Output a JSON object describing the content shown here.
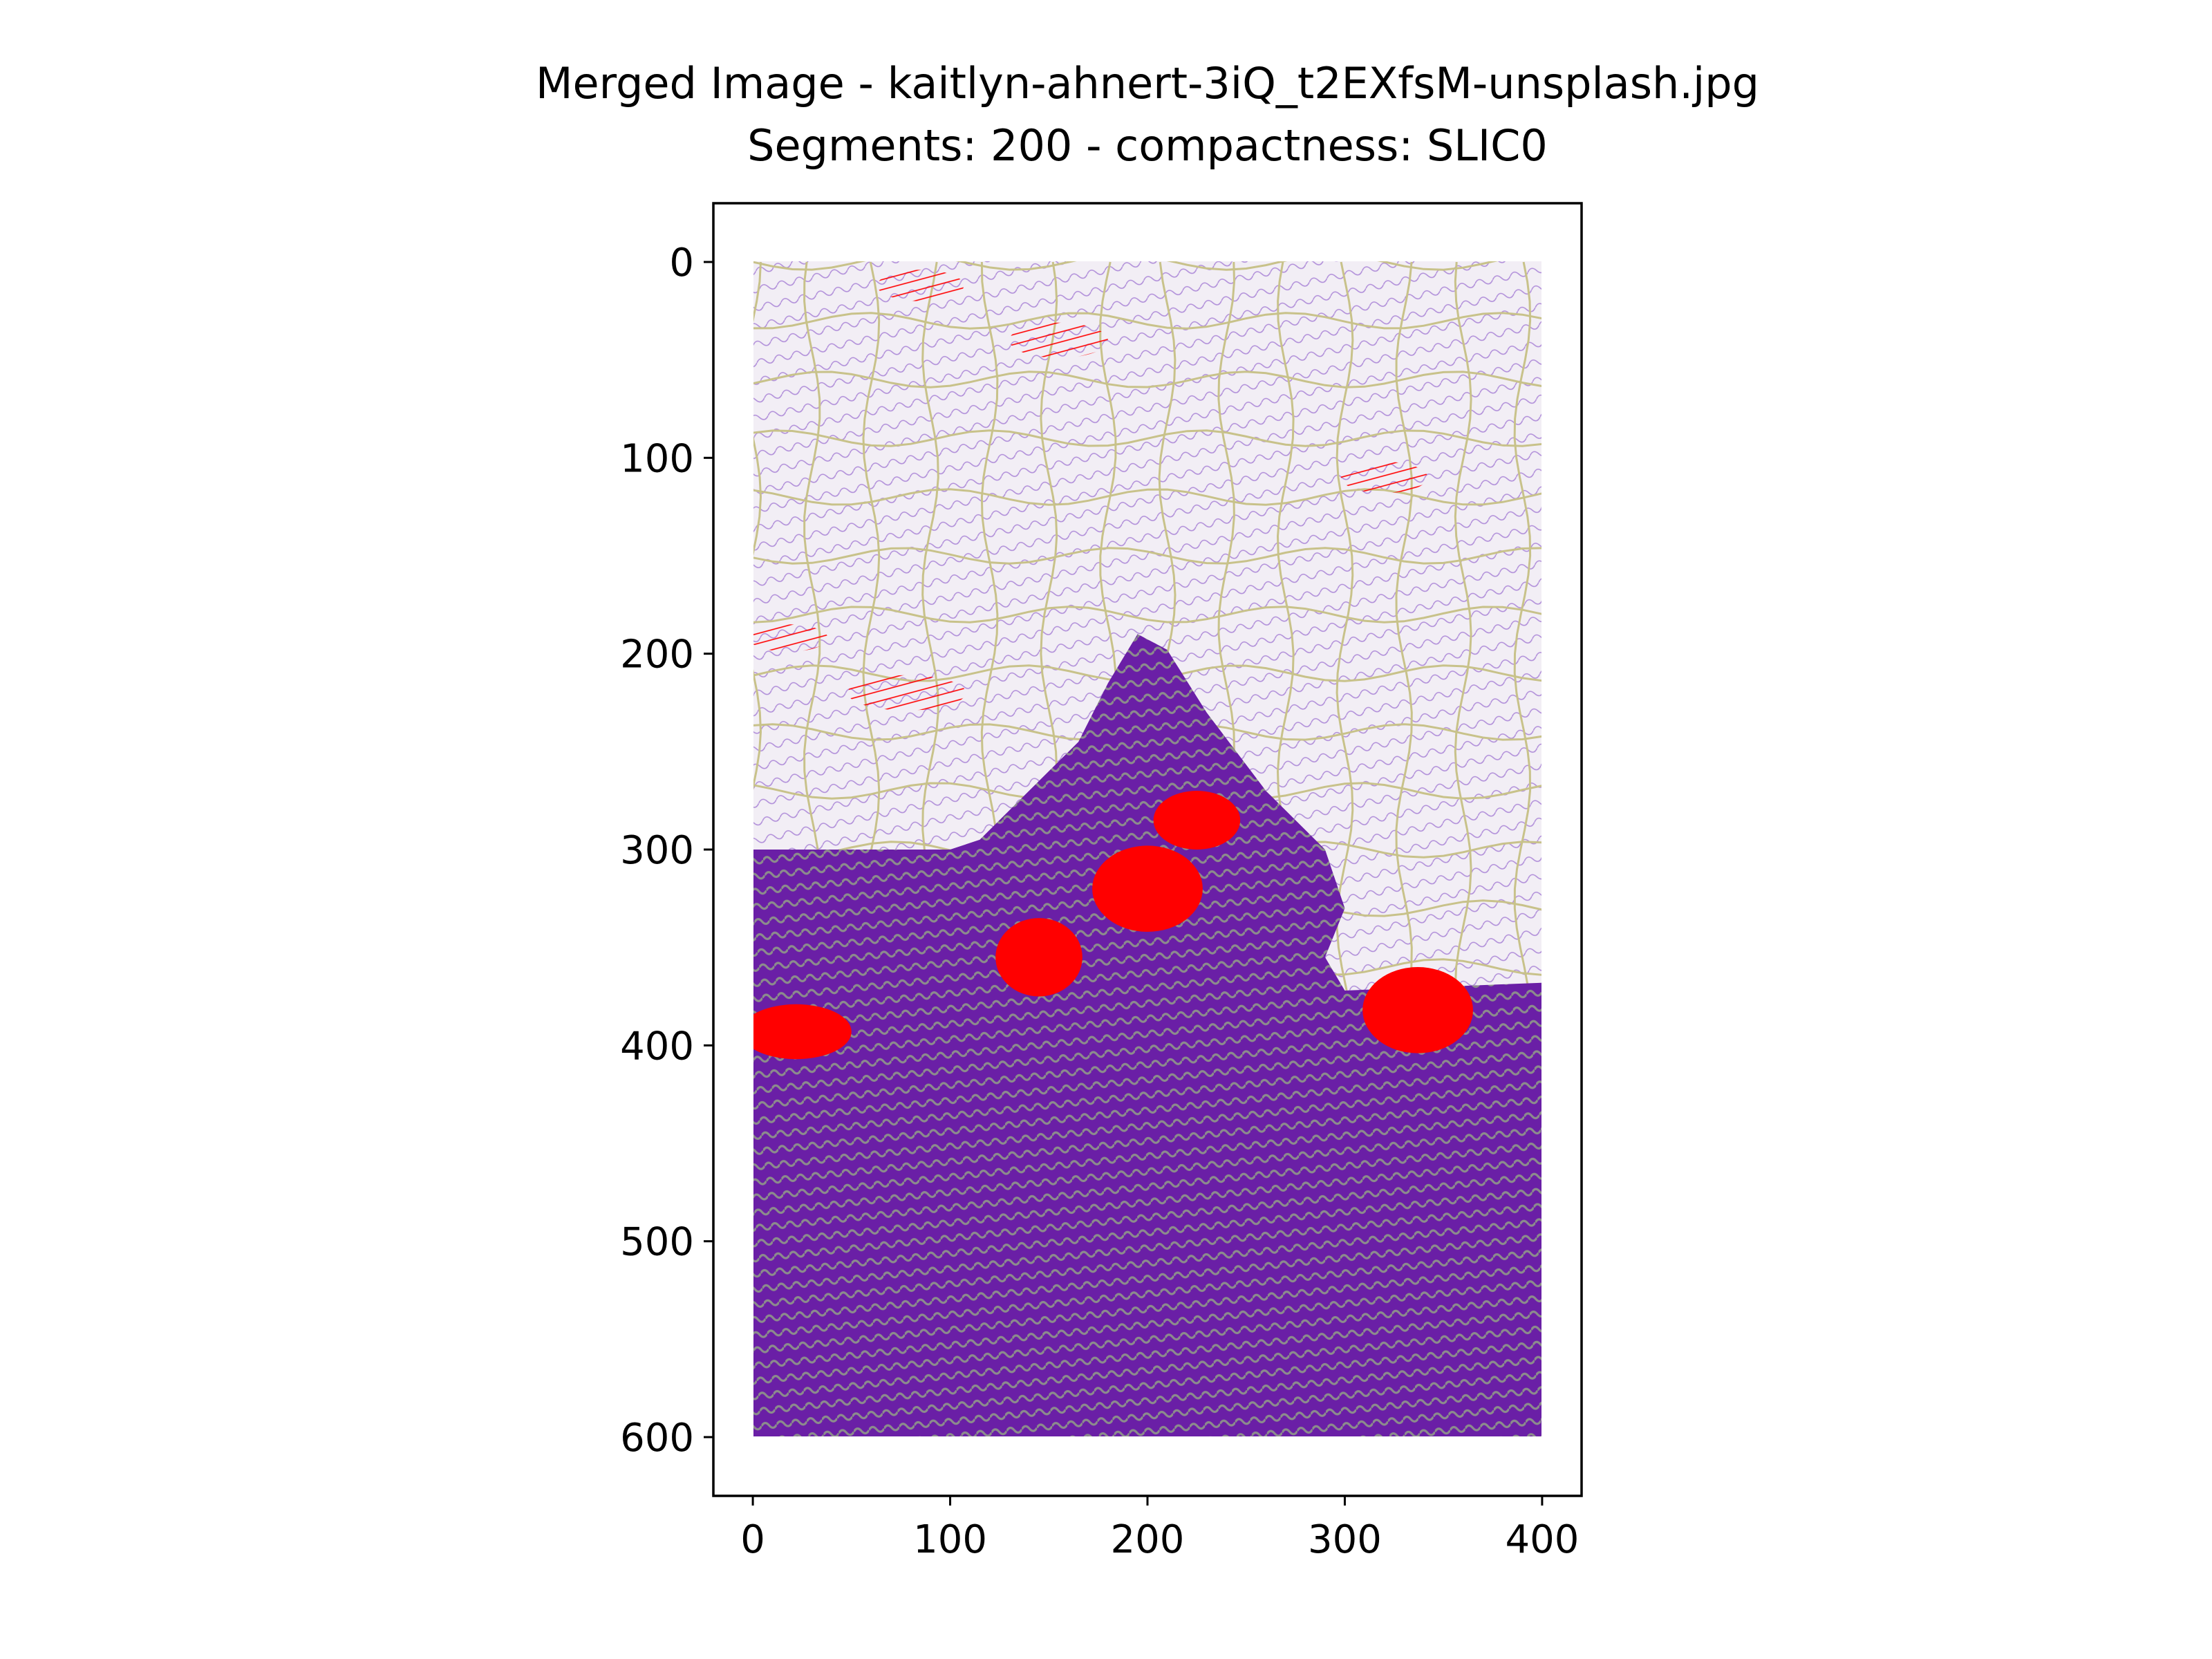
{
  "chart_data": {
    "type": "image",
    "title": "Merged Image - kaitlyn-ahnert-3iQ_t2EXfsM-unsplash.jpg",
    "subtitle": "Segments: 200 - compactness: SLIC0",
    "xlim": [
      -20,
      420
    ],
    "ylim": [
      630,
      -30
    ],
    "image_extent": {
      "x": [
        0,
        400
      ],
      "y": [
        0,
        600
      ]
    },
    "x_ticks": [
      0,
      100,
      200,
      300,
      400
    ],
    "y_ticks": [
      0,
      100,
      200,
      300,
      400,
      500,
      600
    ],
    "grid": false,
    "legend": "none",
    "colors": {
      "sky_background": "#f2eef5",
      "sky_stroke": "#9b6fd0",
      "foreground_purple": "#6a1fa6",
      "foreground_gray": "#8c8c8c",
      "highlight_red": "#ff0000",
      "segment_boundary": "#c8c28a"
    },
    "red_regions": [
      {
        "x": 85,
        "y": 12,
        "rx": 22,
        "ry": 8,
        "type": "stroke"
      },
      {
        "x": 155,
        "y": 40,
        "rx": 25,
        "ry": 9,
        "type": "stroke"
      },
      {
        "x": 320,
        "y": 110,
        "rx": 22,
        "ry": 8,
        "type": "stroke"
      },
      {
        "x": 18,
        "y": 192,
        "rx": 20,
        "ry": 7,
        "type": "stroke"
      },
      {
        "x": 78,
        "y": 220,
        "rx": 30,
        "ry": 9,
        "type": "stroke"
      },
      {
        "x": 225,
        "y": 285,
        "rx": 22,
        "ry": 15,
        "type": "solid"
      },
      {
        "x": 200,
        "y": 320,
        "rx": 28,
        "ry": 22,
        "type": "solid"
      },
      {
        "x": 145,
        "y": 355,
        "rx": 22,
        "ry": 20,
        "type": "solid"
      },
      {
        "x": 22,
        "y": 393,
        "rx": 28,
        "ry": 14,
        "type": "solid"
      },
      {
        "x": 337,
        "y": 382,
        "rx": 28,
        "ry": 22,
        "type": "solid"
      }
    ]
  }
}
